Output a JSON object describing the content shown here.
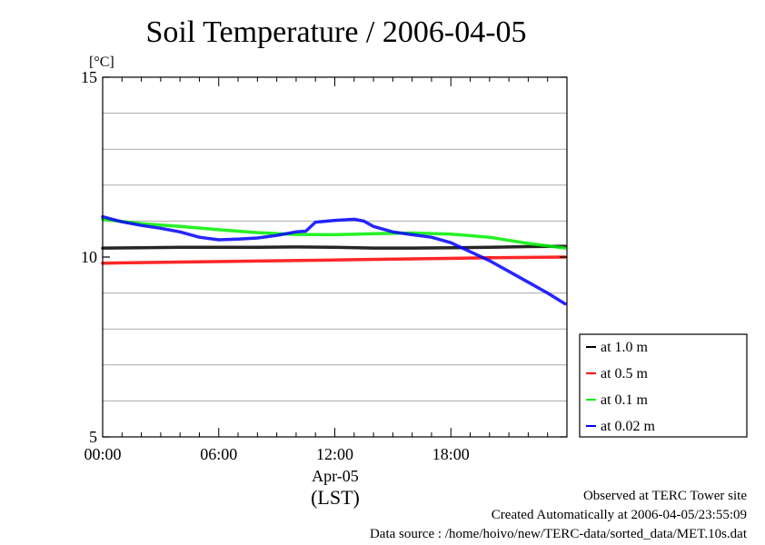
{
  "chart_data": {
    "type": "line",
    "title": "Soil Temperature / 2006-04-05",
    "ylabel": "[°C]",
    "ylim": [
      5,
      15
    ],
    "yticks": [
      5,
      10,
      15
    ],
    "gridlines": [
      6,
      7,
      8,
      9,
      11,
      12,
      13,
      14
    ],
    "xlim": [
      0,
      24
    ],
    "xticks": [
      {
        "value": 0,
        "label": "00:00"
      },
      {
        "value": 6,
        "label": "06:00"
      },
      {
        "value": 12,
        "label": "12:00"
      },
      {
        "value": 18,
        "label": "18:00"
      }
    ],
    "xdate": "Apr-05",
    "xunit": "(LST)",
    "legend_position": "right",
    "series": [
      {
        "name": "at 1.0 m",
        "color": "#000000",
        "x": [
          0,
          2,
          4,
          6,
          8,
          10,
          12,
          14,
          16,
          18,
          20,
          22,
          23.9
        ],
        "y": [
          10.25,
          10.26,
          10.27,
          10.27,
          10.27,
          10.28,
          10.27,
          10.25,
          10.25,
          10.26,
          10.27,
          10.29,
          10.3
        ]
      },
      {
        "name": "at 0.5 m",
        "color": "#ff0000",
        "x": [
          0,
          4,
          8,
          12,
          16,
          20,
          23.9
        ],
        "y": [
          9.83,
          9.86,
          9.89,
          9.92,
          9.95,
          9.98,
          10.0
        ]
      },
      {
        "name": "at 0.1 m",
        "color": "#00ee00",
        "x": [
          0,
          2,
          4,
          6,
          8,
          10,
          12,
          14,
          16,
          18,
          20,
          22,
          23.9
        ],
        "y": [
          11.05,
          10.93,
          10.85,
          10.76,
          10.68,
          10.63,
          10.62,
          10.65,
          10.67,
          10.64,
          10.55,
          10.38,
          10.25
        ]
      },
      {
        "name": "at 0.02 m",
        "color": "#0000ff",
        "x": [
          0,
          1,
          2,
          3,
          4,
          5,
          6,
          7,
          8,
          9,
          10,
          10.5,
          11,
          12,
          13,
          13.5,
          14,
          15,
          16,
          17,
          18,
          19,
          20,
          21,
          22,
          23,
          23.9
        ],
        "y": [
          11.12,
          10.98,
          10.88,
          10.8,
          10.7,
          10.55,
          10.48,
          10.5,
          10.53,
          10.6,
          10.7,
          10.72,
          10.97,
          11.02,
          11.05,
          11.0,
          10.85,
          10.7,
          10.62,
          10.55,
          10.4,
          10.15,
          9.9,
          9.6,
          9.3,
          9.0,
          8.7
        ]
      }
    ]
  },
  "footer": {
    "site": "Observed at TERC Tower site",
    "created": "Created Automatically at 2006-04-05/23:55:09",
    "source": "Data source : /home/hoivo/new/TERC-data/sorted_data/MET.10s.dat"
  }
}
